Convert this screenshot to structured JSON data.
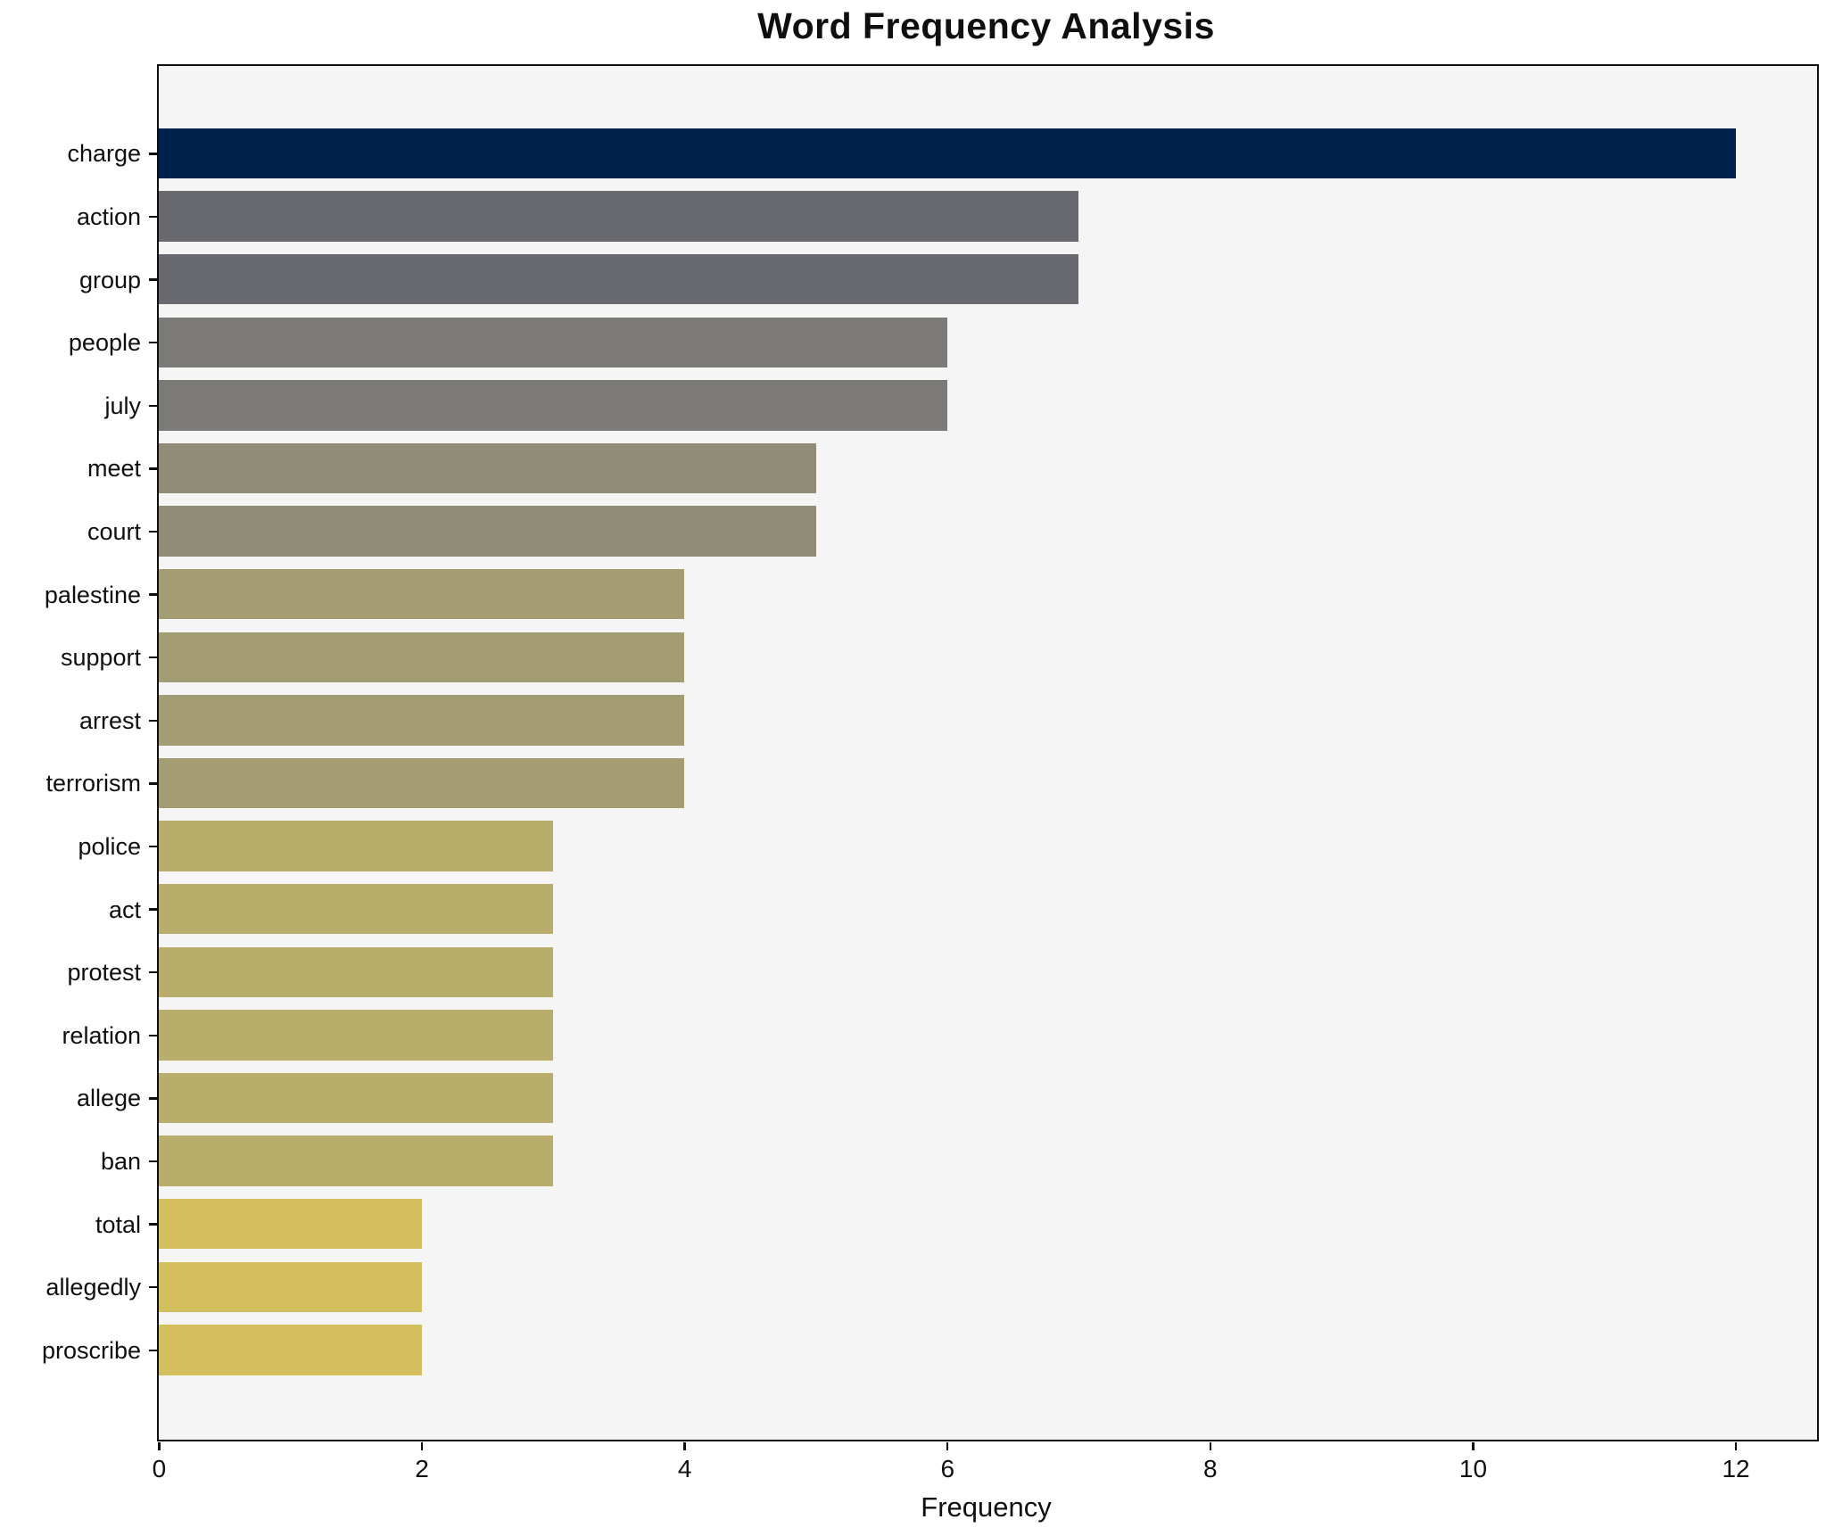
{
  "chart_data": {
    "type": "bar",
    "orientation": "horizontal",
    "title": "Word Frequency Analysis",
    "xlabel": "Frequency",
    "ylabel": "",
    "categories": [
      "charge",
      "action",
      "group",
      "people",
      "july",
      "meet",
      "court",
      "palestine",
      "support",
      "arrest",
      "terrorism",
      "police",
      "act",
      "protest",
      "relation",
      "allege",
      "ban",
      "total",
      "allegedly",
      "proscribe"
    ],
    "values": [
      12,
      7,
      7,
      6,
      6,
      5,
      5,
      4,
      4,
      4,
      4,
      3,
      3,
      3,
      3,
      3,
      3,
      2,
      2,
      2
    ],
    "bar_colors": [
      "#00234e",
      "#696a70",
      "#696a70",
      "#7b7a76",
      "#7b7a76",
      "#918c78",
      "#918c78",
      "#a49c73",
      "#a49c73",
      "#a49c73",
      "#a49c73",
      "#b9ad6b",
      "#b9ad6b",
      "#b9ad6b",
      "#b9ad6b",
      "#b9ad6b",
      "#b9ad6b",
      "#d3bf5e",
      "#d3bf5e",
      "#d3bf5e"
    ],
    "xlim": [
      0,
      12.62
    ],
    "x_ticks": [
      0,
      2,
      4,
      6,
      8,
      10,
      12
    ],
    "grid": false,
    "legend": null,
    "plot_bg": "#f5f5f6",
    "fig_bg": "#ffffff",
    "spine_color": "#0f0f0f"
  }
}
